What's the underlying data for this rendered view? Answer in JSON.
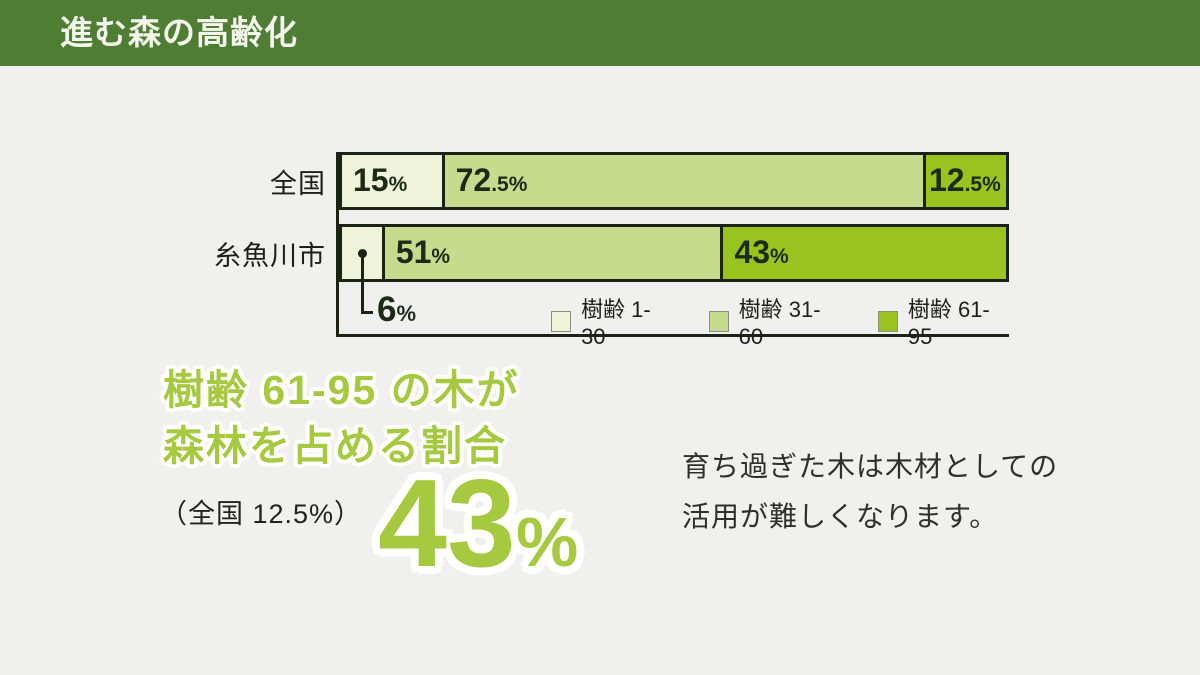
{
  "header": {
    "title": "進む森の高齢化"
  },
  "colors": {
    "header_bg": "#4e7d33",
    "background": "#f0f0ee",
    "bar_border": "#1b2414",
    "accent_green": "#a6c93f",
    "series": [
      "#eef3da",
      "#c8da8d",
      "#99c31e"
    ]
  },
  "chart_data": {
    "type": "bar",
    "stacked": true,
    "orientation": "horizontal",
    "categories": [
      "全国",
      "糸魚川市"
    ],
    "series": [
      {
        "name": "樹齢 1-30",
        "color": "#eef3da",
        "values": [
          15,
          6
        ]
      },
      {
        "name": "樹齢 31-60",
        "color": "#c8da8d",
        "values": [
          72.5,
          51
        ]
      },
      {
        "name": "樹齢 61-95",
        "color": "#99c31e",
        "values": [
          12.5,
          43
        ]
      }
    ],
    "unit": "%",
    "xlim": [
      0,
      100
    ],
    "grid": false,
    "legend_position": "bottom-right",
    "data_labels": [
      [
        "15%",
        "72.5%",
        "12.5%"
      ],
      [
        "6%",
        "51%",
        "43%"
      ]
    ]
  },
  "chart": {
    "rows": [
      {
        "label": "全国",
        "segments": [
          {
            "big": "15",
            "small": "%"
          },
          {
            "big": "72",
            "small": ".5%"
          },
          {
            "big": "12",
            "small": ".5%"
          }
        ]
      },
      {
        "label": "糸魚川市",
        "segments": [
          {
            "big": "",
            "small": ""
          },
          {
            "big": "51",
            "small": "%"
          },
          {
            "big": "43",
            "small": "%"
          }
        ]
      }
    ],
    "callout": {
      "big": "6",
      "small": "%"
    },
    "legend": [
      {
        "label": "樹齢 1-30",
        "color": "#eef3da"
      },
      {
        "label": "樹齢 31-60",
        "color": "#c8da8d"
      },
      {
        "label": "樹齢 61-95",
        "color": "#99c31e"
      }
    ]
  },
  "highlight": {
    "heading_line1": "樹齢 61-95 の木が",
    "heading_line2": "森林を占める割合",
    "national_note": "（全国 12.5%）",
    "value": "43",
    "unit": "%"
  },
  "description": {
    "line1": "育ち過ぎた木は木材としての",
    "line2": "活用が難しくなります。"
  }
}
